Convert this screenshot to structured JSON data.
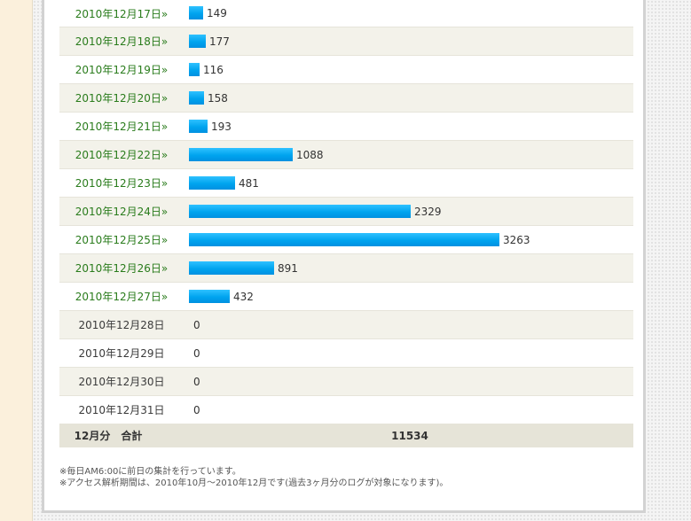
{
  "chart_data": {
    "type": "bar",
    "orientation": "horizontal",
    "categories": [
      "2010年12月17日»",
      "2010年12月18日»",
      "2010年12月19日»",
      "2010年12月20日»",
      "2010年12月21日»",
      "2010年12月22日»",
      "2010年12月23日»",
      "2010年12月24日»",
      "2010年12月25日»",
      "2010年12月26日»",
      "2010年12月27日»",
      "2010年12月28日",
      "2010年12月29日",
      "2010年12月30日",
      "2010年12月31日"
    ],
    "values": [
      149,
      177,
      116,
      158,
      193,
      1088,
      481,
      2329,
      3263,
      891,
      432,
      0,
      0,
      0,
      0
    ],
    "linked": [
      true,
      true,
      true,
      true,
      true,
      true,
      true,
      true,
      true,
      true,
      true,
      false,
      false,
      false,
      false
    ],
    "max_value": 3263,
    "bar_color": "#00a4ef",
    "link_color": "#2a7c1c"
  },
  "total": {
    "label": "12月分　合計",
    "value": "11534"
  },
  "notes": [
    "※毎日AM6:00に前日の集計を行っています。",
    "※アクセス解析期間は、2010年10月～2010年12月です(過去3ヶ月分のログが対象になります)。"
  ]
}
